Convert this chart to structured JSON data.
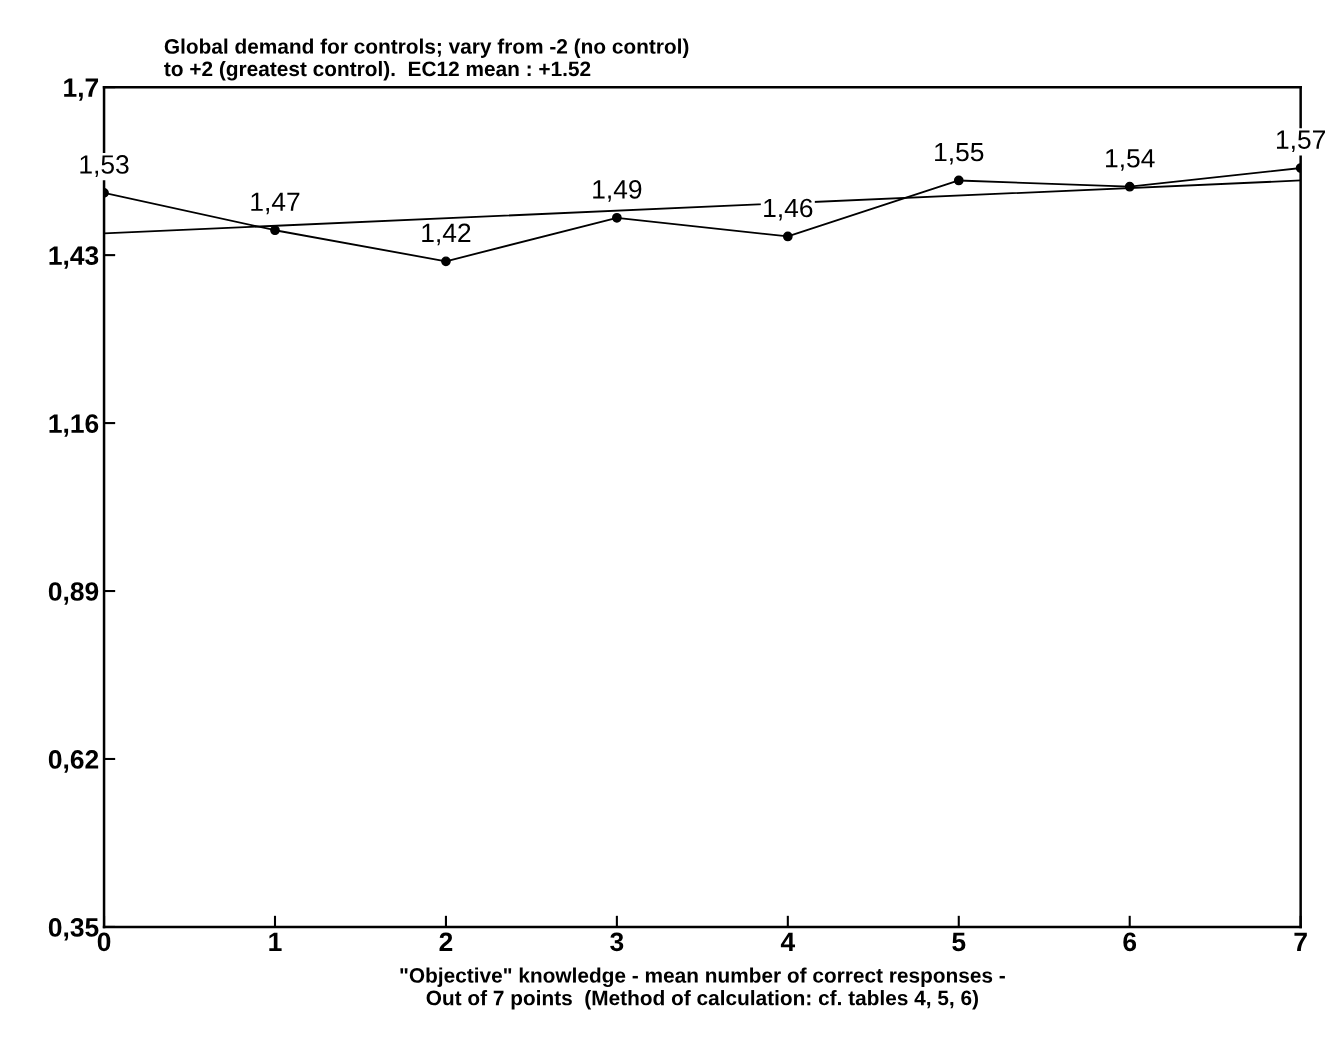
{
  "chart_data": {
    "type": "line",
    "title": "Global demand for controls; vary from -2 (no control)\nto +2 (greatest control).  EC12 mean : +1.52",
    "xlabel": "\"Objective\" knowledge - mean number of correct responses -\nOut of 7 points  (Method of calculation: cf. tables 4, 5, 6)",
    "xlim": [
      0,
      7
    ],
    "xticks": [
      0,
      1,
      2,
      3,
      4,
      5,
      6,
      7
    ],
    "ylim": [
      0.35,
      1.7
    ],
    "yticks": [
      {
        "value": 0.35,
        "label": "0,35"
      },
      {
        "value": 0.62,
        "label": "0,62"
      },
      {
        "value": 0.89,
        "label": "0,89"
      },
      {
        "value": 1.16,
        "label": "1,16"
      },
      {
        "value": 1.43,
        "label": "1,43"
      },
      {
        "value": 1.7,
        "label": "1,7"
      }
    ],
    "grid": false,
    "series": [
      {
        "color": "#000000",
        "x": [
          0,
          1,
          2,
          3,
          4,
          5,
          6,
          7
        ],
        "values": [
          1.53,
          1.47,
          1.42,
          1.49,
          1.46,
          1.55,
          1.54,
          1.57
        ],
        "marker": "circle",
        "value_labels": [
          "1,53",
          "1,47",
          "1,42",
          "1,49",
          "1,46",
          "1,55",
          "1,54",
          "1,57"
        ]
      },
      {
        "color": "#000000",
        "x": [
          0,
          7
        ],
        "values": [
          1.465,
          1.55
        ],
        "marker": "none"
      }
    ]
  }
}
